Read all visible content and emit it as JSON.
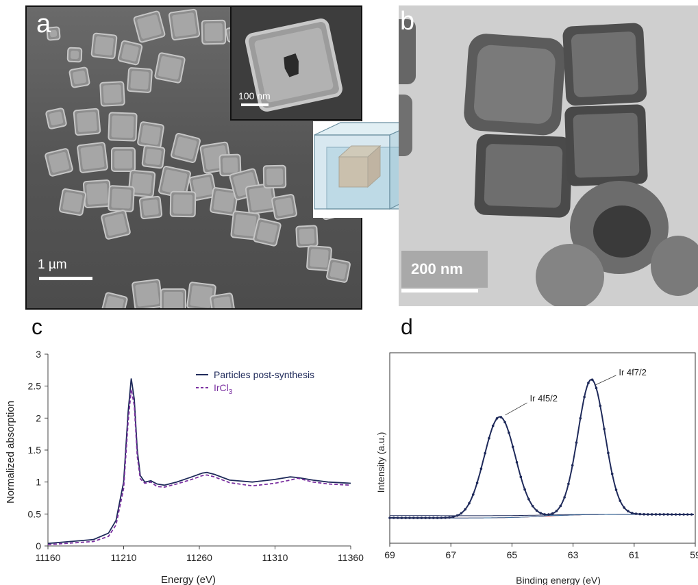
{
  "panel_letters": {
    "a": "a",
    "b": "b",
    "c": "c",
    "d": "d"
  },
  "sem": {
    "scale_main": "1 µm",
    "scale_inset": "100 nm",
    "colors": {
      "background": "#5a5a5a",
      "particle": "#a8a8a8"
    }
  },
  "schematic": {
    "colors": {
      "shell": "#b8d6e3",
      "shell_edge": "#6a8fa0",
      "core": "#e3a970",
      "core_edge": "#9a6a3a"
    }
  },
  "tem": {
    "scale": "200 nm",
    "colors": {
      "background": "#c9c9c9",
      "particle": "#5c5c5c"
    }
  },
  "chart_data": [
    {
      "type": "line",
      "xlabel": "Energy (eV)",
      "ylabel": "Normalized absorption",
      "xlim": [
        11160,
        11360
      ],
      "ylim": [
        0,
        3
      ],
      "xticks": [
        "11160",
        "11210",
        "11260",
        "11310",
        "11360"
      ],
      "yticks": [
        "0",
        "0.5",
        "1",
        "1.5",
        "2",
        "2.5",
        "3"
      ],
      "legend_position": "top-right",
      "grid": false,
      "series": [
        {
          "name": "Particles post-synthesis",
          "color": "#1f2a5a",
          "dash": "solid",
          "x": [
            11160,
            11190,
            11200,
            11205,
            11210,
            11213,
            11215,
            11217,
            11219,
            11221,
            11224,
            11228,
            11232,
            11237,
            11245,
            11255,
            11262,
            11265,
            11270,
            11280,
            11295,
            11310,
            11320,
            11325,
            11335,
            11345,
            11360
          ],
          "y": [
            0.04,
            0.1,
            0.2,
            0.4,
            1.0,
            2.1,
            2.62,
            2.3,
            1.5,
            1.1,
            1.0,
            1.02,
            0.97,
            0.95,
            1.0,
            1.08,
            1.14,
            1.15,
            1.12,
            1.03,
            1.0,
            1.04,
            1.08,
            1.07,
            1.03,
            1.0,
            0.98
          ]
        },
        {
          "name": "IrCl",
          "name_sub": "3",
          "color": "#7a2fa0",
          "dash": "dashed",
          "x": [
            11160,
            11190,
            11200,
            11205,
            11210,
            11213,
            11215,
            11217,
            11219,
            11221,
            11224,
            11228,
            11232,
            11237,
            11245,
            11255,
            11262,
            11265,
            11270,
            11280,
            11295,
            11310,
            11320,
            11325,
            11335,
            11345,
            11360
          ],
          "y": [
            0.02,
            0.07,
            0.15,
            0.33,
            0.9,
            1.95,
            2.45,
            2.2,
            1.4,
            1.05,
            0.98,
            1.0,
            0.93,
            0.92,
            0.97,
            1.04,
            1.1,
            1.11,
            1.08,
            0.99,
            0.94,
            0.98,
            1.03,
            1.06,
            1.0,
            0.97,
            0.95
          ]
        }
      ]
    },
    {
      "type": "line",
      "xlabel": "Binding energy (eV)",
      "ylabel": "Intensity (a.u.)",
      "xlim": [
        69,
        59
      ],
      "x_reversed": true,
      "xticks": [
        "69",
        "67",
        "65",
        "63",
        "61",
        "59"
      ],
      "grid": false,
      "peaks": [
        {
          "label": "Ir 4f5/2",
          "center": 65.4,
          "height": 0.68
        },
        {
          "label": "Ir 4f7/2",
          "center": 62.4,
          "height": 0.86
        }
      ],
      "series": [
        {
          "name": "",
          "role": "data points",
          "color": "#1f2a5a"
        },
        {
          "name": "",
          "role": "fit envelope",
          "color": "#1f2a5a"
        },
        {
          "name": "",
          "role": "component peaks",
          "color": "#3a6fa0"
        },
        {
          "name": "",
          "role": "background",
          "color": "#c04040"
        }
      ]
    }
  ]
}
